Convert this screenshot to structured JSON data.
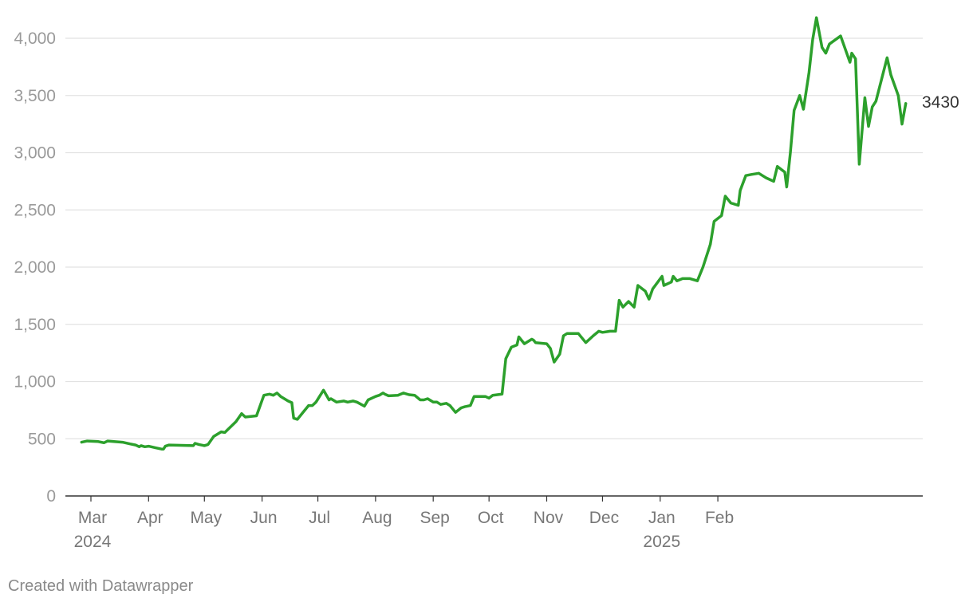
{
  "chart_data": {
    "type": "line",
    "title": "",
    "xlabel": "",
    "ylabel": "",
    "ylim": [
      0,
      4000
    ],
    "yticks": [
      "0",
      "500",
      "1,000",
      "1,500",
      "2,000",
      "2,500",
      "3,000",
      "3,500",
      "4,000"
    ],
    "xticks": [
      {
        "label": "Mar",
        "sub": "2024",
        "date": "2024-03-01"
      },
      {
        "label": "Apr",
        "sub": "",
        "date": "2024-04-01"
      },
      {
        "label": "May",
        "sub": "",
        "date": "2024-05-01"
      },
      {
        "label": "Jun",
        "sub": "",
        "date": "2024-06-01"
      },
      {
        "label": "Jul",
        "sub": "",
        "date": "2024-07-01"
      },
      {
        "label": "Aug",
        "sub": "",
        "date": "2024-08-01"
      },
      {
        "label": "Sep",
        "sub": "",
        "date": "2024-09-01"
      },
      {
        "label": "Oct",
        "sub": "",
        "date": "2024-10-01"
      },
      {
        "label": "Nov",
        "sub": "",
        "date": "2024-11-01"
      },
      {
        "label": "Dec",
        "sub": "",
        "date": "2024-12-01"
      },
      {
        "label": "Jan",
        "sub": "2025",
        "date": "2025-01-01"
      },
      {
        "label": "Feb",
        "sub": "",
        "date": "2025-02-01"
      }
    ],
    "grid": true,
    "line_color": "#2ca02c",
    "end_label": "3430",
    "series": [
      {
        "name": "",
        "points": [
          [
            "2024-02-25",
            470
          ],
          [
            "2024-02-28",
            480
          ],
          [
            "2024-03-05",
            475
          ],
          [
            "2024-03-08",
            465
          ],
          [
            "2024-03-10",
            480
          ],
          [
            "2024-03-18",
            470
          ],
          [
            "2024-03-22",
            455
          ],
          [
            "2024-03-25",
            445
          ],
          [
            "2024-03-27",
            430
          ],
          [
            "2024-03-28",
            440
          ],
          [
            "2024-03-30",
            430
          ],
          [
            "2024-04-01",
            435
          ],
          [
            "2024-04-05",
            420
          ],
          [
            "2024-04-08",
            410
          ],
          [
            "2024-04-09",
            410
          ],
          [
            "2024-04-10",
            435
          ],
          [
            "2024-04-12",
            445
          ],
          [
            "2024-04-25",
            440
          ],
          [
            "2024-04-26",
            460
          ],
          [
            "2024-04-28",
            450
          ],
          [
            "2024-05-01",
            440
          ],
          [
            "2024-05-03",
            450
          ],
          [
            "2024-05-06",
            520
          ],
          [
            "2024-05-10",
            560
          ],
          [
            "2024-05-12",
            555
          ],
          [
            "2024-05-18",
            650
          ],
          [
            "2024-05-21",
            720
          ],
          [
            "2024-05-23",
            690
          ],
          [
            "2024-05-29",
            700
          ],
          [
            "2024-06-02",
            880
          ],
          [
            "2024-06-05",
            890
          ],
          [
            "2024-06-07",
            880
          ],
          [
            "2024-06-09",
            900
          ],
          [
            "2024-06-11",
            870
          ],
          [
            "2024-06-15",
            830
          ],
          [
            "2024-06-17",
            815
          ],
          [
            "2024-06-18",
            680
          ],
          [
            "2024-06-20",
            670
          ],
          [
            "2024-06-24",
            750
          ],
          [
            "2024-06-26",
            790
          ],
          [
            "2024-06-28",
            790
          ],
          [
            "2024-06-30",
            820
          ],
          [
            "2024-07-04",
            925
          ],
          [
            "2024-07-07",
            840
          ],
          [
            "2024-07-08",
            850
          ],
          [
            "2024-07-11",
            820
          ],
          [
            "2024-07-15",
            830
          ],
          [
            "2024-07-17,",
            820
          ],
          [
            "2024-07-20",
            830
          ],
          [
            "2024-07-22",
            820
          ],
          [
            "2024-07-26",
            785
          ],
          [
            "2024-07-28",
            840
          ],
          [
            "2024-08-01",
            870
          ],
          [
            "2024-08-03",
            880
          ],
          [
            "2024-08-05",
            900
          ],
          [
            "2024-08-06",
            890
          ],
          [
            "2024-08-08",
            875
          ],
          [
            "2024-08-13",
            880
          ],
          [
            "2024-08-16",
            900
          ],
          [
            "2024-08-19",
            885
          ],
          [
            "2024-08-22",
            880
          ],
          [
            "2024-08-25",
            840
          ],
          [
            "2024-08-27",
            840
          ],
          [
            "2024-08-29",
            850
          ],
          [
            "2024-09-01",
            820
          ],
          [
            "2024-09-03",
            820
          ],
          [
            "2024-09-05",
            800
          ],
          [
            "2024-09-08",
            810
          ],
          [
            "2024-09-10",
            790
          ],
          [
            "2024-09-13",
            730
          ],
          [
            "2024-09-16",
            770
          ],
          [
            "2024-09-18",
            780
          ],
          [
            "2024-09-21",
            790
          ],
          [
            "2024-09-23",
            870
          ],
          [
            "2024-09-26",
            870
          ],
          [
            "2024-09-29",
            870
          ],
          [
            "2024-10-01",
            855
          ],
          [
            "2024-10-03",
            880
          ],
          [
            "2024-10-08",
            890
          ],
          [
            "2024-10-10",
            1200
          ],
          [
            "2024-10-13",
            1300
          ],
          [
            "2024-10-16",
            1320
          ],
          [
            "2024-10-17",
            1390
          ],
          [
            "2024-10-20",
            1330
          ],
          [
            "2024-10-24",
            1370
          ],
          [
            "2024-10-25",
            1360
          ],
          [
            "2024-10-26",
            1340
          ],
          [
            "2024-11-01",
            1330
          ],
          [
            "2024-11-03",
            1290
          ],
          [
            "2024-11-05",
            1170
          ],
          [
            "2024-11-08",
            1240
          ],
          [
            "2024-11-10",
            1400
          ],
          [
            "2024-11-12",
            1420
          ],
          [
            "2024-11-18",
            1420
          ],
          [
            "2024-11-22",
            1340
          ],
          [
            "2024-11-26",
            1400
          ],
          [
            "2024-11-29",
            1440
          ],
          [
            "2024-12-01",
            1430
          ],
          [
            "2024-12-05",
            1440
          ],
          [
            "2024-12-08",
            1440
          ],
          [
            "2024-12-10",
            1710
          ],
          [
            "2024-12-12",
            1650
          ],
          [
            "2024-12-15",
            1700
          ],
          [
            "2024-12-18",
            1650
          ],
          [
            "2024-12-20",
            1840
          ],
          [
            "2024-12-24",
            1790
          ],
          [
            "2024-12-26",
            1720
          ],
          [
            "2024-12-28",
            1810
          ],
          [
            "2025-01-02",
            1920
          ],
          [
            "2025-01-03",
            1840
          ],
          [
            "2025-01-07",
            1870
          ],
          [
            "2025-01-08",
            1920
          ],
          [
            "2025-01-10",
            1880
          ],
          [
            "2025-01-13",
            1900
          ],
          [
            "2025-01-17",
            1900
          ],
          [
            "2025-01-21",
            1880
          ],
          [
            "2025-01-24",
            2000
          ],
          [
            "2025-01-28",
            2200
          ],
          [
            "2025-01-30",
            2400
          ],
          [
            "2025-02-03",
            2450
          ],
          [
            "2025-02-05",
            2620
          ],
          [
            "2025-02-08",
            2560
          ],
          [
            "2025-02-12",
            2540
          ],
          [
            "2025-02-13",
            2670
          ],
          [
            "2025-02-16",
            2800
          ],
          [
            "2025-02-19",
            2810
          ],
          [
            "2025-02-23",
            2820
          ],
          [
            "2025-02-27",
            2780
          ],
          [
            "2025-03-03",
            2750
          ],
          [
            "2025-03-05",
            2880
          ],
          [
            "2025-03-09",
            2830
          ],
          [
            "2025-03-10",
            2700
          ],
          [
            "2025-03-12",
            3000
          ],
          [
            "2025-03-14",
            3370
          ],
          [
            "2025-03-17",
            3500
          ],
          [
            "2025-03-19",
            3380
          ],
          [
            "2025-03-22",
            3700
          ],
          [
            "2025-03-24",
            3990
          ],
          [
            "2025-03-26",
            4180
          ],
          [
            "2025-03-29",
            3920
          ],
          [
            "2025-03-31",
            3870
          ],
          [
            "2025-04-02",
            3950
          ],
          [
            "2025-04-08",
            4020
          ],
          [
            "2025-04-13",
            3790
          ],
          [
            "2025-04-14",
            3870
          ],
          [
            "2025-04-16",
            3820
          ],
          [
            "2025-04-18",
            2900
          ],
          [
            "2025-04-21",
            3480
          ],
          [
            "2025-04-23",
            3230
          ],
          [
            "2025-04-25",
            3400
          ],
          [
            "2025-04-27",
            3450
          ],
          [
            "2025-05-03",
            3830
          ],
          [
            "2025-05-05",
            3680
          ],
          [
            "2025-05-09",
            3500
          ],
          [
            "2025-05-11",
            3250
          ],
          [
            "2025-05-13",
            3430
          ]
        ]
      }
    ]
  },
  "footer": {
    "credit": "Created with Datawrapper"
  }
}
